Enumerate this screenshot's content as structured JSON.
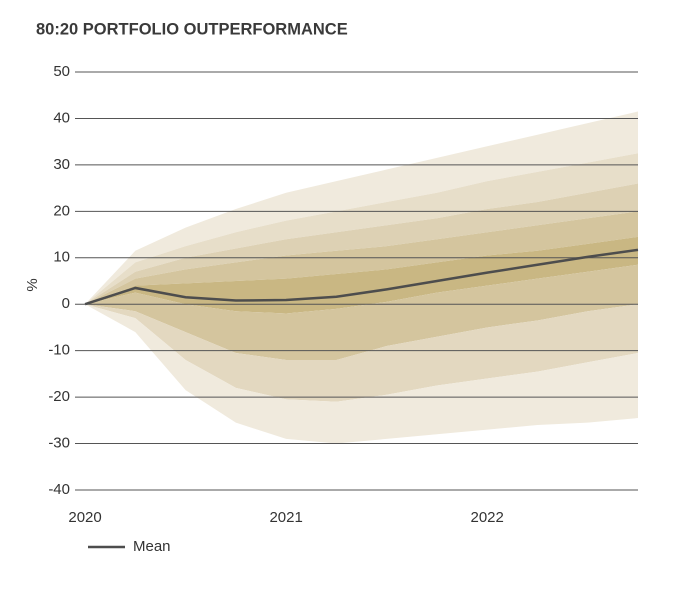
{
  "chart_data": {
    "type": "fan",
    "title": "80:20 PORTFOLIO OUTPERFORMANCE",
    "y_label": "%",
    "x": [
      2020,
      2020.25,
      2020.5,
      2020.75,
      2021,
      2021.25,
      2021.5,
      2021.75,
      2022,
      2022.25,
      2022.5,
      2022.75
    ],
    "xlim": [
      2019.95,
      2022.75
    ],
    "xticks": [
      2020,
      2021,
      2022
    ],
    "ylim": [
      -40,
      50
    ],
    "yticks": [
      -40,
      -30,
      -20,
      -10,
      0,
      10,
      20,
      30,
      40,
      50
    ],
    "grid": true,
    "bands": {
      "boundaries": [
        [
          0,
          11.5,
          16.5,
          20.5,
          24,
          26.5,
          29,
          31.5,
          34,
          36.5,
          39,
          41.5
        ],
        [
          0,
          9,
          12.5,
          15.5,
          18,
          20,
          22,
          24,
          26.5,
          28.5,
          30.5,
          32.5
        ],
        [
          0,
          7,
          10,
          12,
          14,
          15.5,
          17,
          18.5,
          20.5,
          22,
          24,
          26
        ],
        [
          0,
          5.5,
          7.5,
          9,
          10.5,
          11.5,
          12.5,
          14,
          15.5,
          17,
          18.5,
          20
        ],
        [
          0,
          4,
          4.5,
          5,
          5.5,
          6.5,
          7.5,
          9,
          10.5,
          11.5,
          13,
          14.5
        ],
        [
          0,
          2.5,
          0,
          -1.5,
          -2,
          -1,
          0.5,
          2.5,
          4,
          5.5,
          7,
          8.5
        ],
        [
          0,
          -1.5,
          -6,
          -10.5,
          -12,
          -12,
          -9,
          -7,
          -5,
          -3.5,
          -1.5,
          0
        ],
        [
          0,
          -3,
          -12,
          -18,
          -20.5,
          -21,
          -19.5,
          -17.5,
          -16,
          -14.5,
          -12.5,
          -10.5
        ],
        [
          0,
          -6,
          -18.5,
          -25.5,
          -29,
          -30,
          -29,
          -28,
          -27,
          -26,
          -25.5,
          -24.5
        ]
      ],
      "colors": [
        "#f0eadd",
        "#e7dec9",
        "#ddd1b4",
        "#d4c59e",
        "#c9b783",
        "#d4c59e",
        "#e3d8c0",
        "#f0eadd"
      ]
    },
    "series": [
      {
        "name": "Mean",
        "color": "#4d4d4d",
        "values": [
          0,
          3.5,
          1.5,
          0.8,
          0.9,
          1.6,
          3.2,
          5,
          6.8,
          8.5,
          10.2,
          11.7
        ]
      }
    ]
  }
}
